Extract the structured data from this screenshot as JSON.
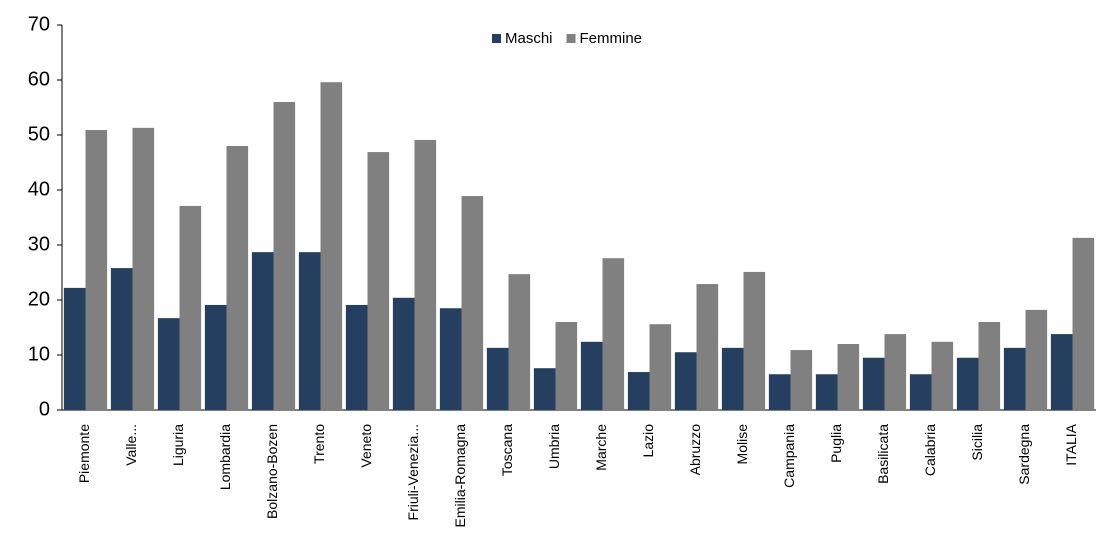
{
  "chart_data": {
    "type": "bar",
    "categories": [
      "Piemonte",
      "Valle...",
      "Liguria",
      "Lombardia",
      "Bolzano-Bozen",
      "Trento",
      "Veneto",
      "Friuli-Venezia...",
      "Emilia-Romagna",
      "Toscana",
      "Umbria",
      "Marche",
      "Lazio",
      "Abruzzo",
      "Molise",
      "Campania",
      "Puglia",
      "Basilicata",
      "Calabria",
      "Sicilia",
      "Sardegna",
      "ITALIA"
    ],
    "series": [
      {
        "name": "Maschi",
        "color": "#243f60",
        "values": [
          22.2,
          25.8,
          16.7,
          19.1,
          28.7,
          28.7,
          19.1,
          20.4,
          18.5,
          11.3,
          7.6,
          12.4,
          6.9,
          10.5,
          11.3,
          6.5,
          6.5,
          9.5,
          6.5,
          9.5,
          11.3,
          13.8
        ]
      },
      {
        "name": "Femmine",
        "color": "#808080",
        "values": [
          50.9,
          51.3,
          37.1,
          48,
          56,
          59.6,
          46.9,
          49.1,
          38.9,
          24.7,
          16,
          27.6,
          15.6,
          22.9,
          25.1,
          10.9,
          12,
          13.8,
          12.4,
          16,
          18.2,
          31.3
        ]
      }
    ],
    "ylim": [
      0,
      70
    ],
    "yticks": [
      0,
      10,
      20,
      30,
      40,
      50,
      60,
      70
    ],
    "grid": false,
    "legend": "top"
  }
}
